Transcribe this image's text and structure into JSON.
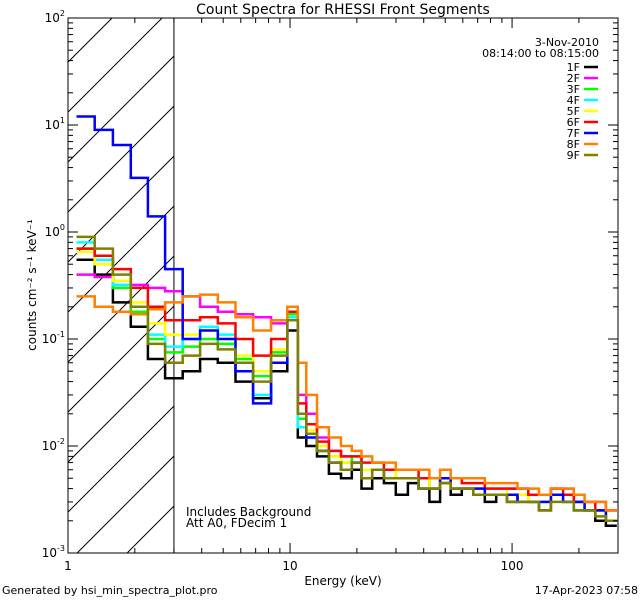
{
  "chart_data": {
    "type": "line",
    "title": "Count Spectra for RHESSI Front Segments",
    "xlabel": "Energy (keV)",
    "ylabel": "counts cm⁻² s⁻¹ keV⁻¹",
    "xscale": "log",
    "yscale": "log",
    "xlim": [
      1,
      300
    ],
    "ylim": [
      0.001,
      100
    ],
    "x_ticks": [
      {
        "value": 1,
        "label": "1"
      },
      {
        "value": 10,
        "label": "10"
      },
      {
        "value": 100,
        "label": "100"
      }
    ],
    "y_ticks": [
      {
        "value": 0.001,
        "base": "10",
        "exp": "-3"
      },
      {
        "value": 0.01,
        "base": "10",
        "exp": "-2"
      },
      {
        "value": 0.1,
        "base": "10",
        "exp": "-1"
      },
      {
        "value": 1,
        "base": "10",
        "exp": "0"
      },
      {
        "value": 10,
        "base": "10",
        "exp": "1"
      },
      {
        "value": 100,
        "base": "10",
        "exp": "2"
      }
    ],
    "date": "3-Nov-2010",
    "time_range": "08:14:00 to 08:15:00",
    "hatched_region": {
      "x_from": 1,
      "x_to": 3
    },
    "annotations": [
      "Includes Background",
      "Att A0, FDecim 1"
    ],
    "series": [
      {
        "name": "1F",
        "color": "#000000",
        "x": [
          1.2,
          1.45,
          1.75,
          2.1,
          2.5,
          3.0,
          3.6,
          4.3,
          5.2,
          6.2,
          7.5,
          9.0,
          10.5,
          11.2,
          12.5,
          14,
          16,
          18,
          20,
          22,
          25,
          28,
          32,
          36,
          40,
          45,
          50,
          56,
          63,
          71,
          80,
          90,
          100,
          112,
          125,
          140,
          160,
          180,
          200,
          225,
          250,
          280
        ],
        "values": [
          0.55,
          0.4,
          0.22,
          0.13,
          0.065,
          0.043,
          0.05,
          0.065,
          0.06,
          0.04,
          0.028,
          0.05,
          0.12,
          0.012,
          0.01,
          0.008,
          0.0055,
          0.005,
          0.006,
          0.004,
          0.005,
          0.0045,
          0.0035,
          0.0045,
          0.004,
          0.003,
          0.0045,
          0.0035,
          0.004,
          0.0035,
          0.003,
          0.0035,
          0.003,
          0.0035,
          0.003,
          0.0025,
          0.0035,
          0.0035,
          0.0025,
          0.0025,
          0.002,
          0.0018
        ]
      },
      {
        "name": "2F",
        "color": "#ff00ff",
        "x": [
          1.2,
          1.45,
          1.75,
          2.1,
          2.5,
          3.0,
          3.6,
          4.3,
          5.2,
          6.2,
          7.5,
          9.0,
          10.5,
          11.2,
          12.5,
          14,
          16,
          18,
          20,
          22,
          25,
          28,
          32,
          36,
          40,
          45,
          50,
          56,
          63,
          71,
          80,
          90,
          100,
          112,
          125,
          140,
          160,
          180,
          200,
          225,
          250,
          280
        ],
        "values": [
          0.4,
          0.38,
          0.35,
          0.32,
          0.3,
          0.28,
          0.25,
          0.2,
          0.18,
          0.17,
          0.16,
          0.14,
          0.15,
          0.03,
          0.02,
          0.012,
          0.009,
          0.008,
          0.007,
          0.006,
          0.006,
          0.006,
          0.005,
          0.005,
          0.005,
          0.004,
          0.005,
          0.004,
          0.004,
          0.004,
          0.004,
          0.004,
          0.004,
          0.004,
          0.0035,
          0.0035,
          0.004,
          0.004,
          0.003,
          0.003,
          0.003,
          0.0025
        ]
      },
      {
        "name": "3F",
        "color": "#00ff00",
        "x": [
          1.2,
          1.45,
          1.75,
          2.1,
          2.5,
          3.0,
          3.6,
          4.3,
          5.2,
          6.2,
          7.5,
          9.0,
          10.5,
          11.2,
          12.5,
          14,
          16,
          18,
          20,
          22,
          25,
          28,
          32,
          36,
          40,
          45,
          50,
          56,
          63,
          71,
          80,
          90,
          100,
          112,
          125,
          140,
          160,
          180,
          200,
          225,
          250,
          280
        ],
        "values": [
          0.7,
          0.5,
          0.3,
          0.18,
          0.1,
          0.075,
          0.085,
          0.1,
          0.09,
          0.065,
          0.045,
          0.075,
          0.17,
          0.018,
          0.013,
          0.009,
          0.008,
          0.007,
          0.008,
          0.006,
          0.006,
          0.006,
          0.005,
          0.005,
          0.005,
          0.004,
          0.0045,
          0.004,
          0.004,
          0.004,
          0.0035,
          0.0035,
          0.0035,
          0.0035,
          0.003,
          0.003,
          0.0035,
          0.003,
          0.003,
          0.0025,
          0.0025,
          0.002
        ]
      },
      {
        "name": "4F",
        "color": "#00ffff",
        "x": [
          1.2,
          1.45,
          1.75,
          2.1,
          2.5,
          3.0,
          3.6,
          4.3,
          5.2,
          6.2,
          7.5,
          9.0,
          10.5,
          11.2,
          12.5,
          14,
          16,
          18,
          20,
          22,
          25,
          28,
          32,
          36,
          40,
          45,
          50,
          56,
          63,
          71,
          80,
          90,
          100,
          112,
          125,
          140,
          160,
          180,
          200,
          225,
          250,
          280
        ],
        "values": [
          0.8,
          0.55,
          0.32,
          0.2,
          0.11,
          0.085,
          0.1,
          0.13,
          0.11,
          0.06,
          0.03,
          0.06,
          0.16,
          0.015,
          0.012,
          0.009,
          0.007,
          0.006,
          0.007,
          0.005,
          0.006,
          0.005,
          0.005,
          0.005,
          0.004,
          0.004,
          0.005,
          0.004,
          0.004,
          0.004,
          0.0035,
          0.0035,
          0.0035,
          0.0035,
          0.003,
          0.003,
          0.0035,
          0.003,
          0.0025,
          0.0025,
          0.0025,
          0.002
        ]
      },
      {
        "name": "5F",
        "color": "#ffff00",
        "x": [
          1.2,
          1.45,
          1.75,
          2.1,
          2.5,
          3.0,
          3.6,
          4.3,
          5.2,
          6.2,
          7.5,
          9.0,
          10.5,
          11.2,
          12.5,
          14,
          16,
          18,
          20,
          22,
          25,
          28,
          32,
          36,
          40,
          45,
          50,
          56,
          63,
          71,
          80,
          90,
          100,
          112,
          125,
          140,
          160,
          180,
          200,
          225,
          250,
          280
        ],
        "values": [
          0.65,
          0.5,
          0.35,
          0.22,
          0.14,
          0.11,
          0.11,
          0.12,
          0.1,
          0.07,
          0.05,
          0.08,
          0.18,
          0.02,
          0.014,
          0.01,
          0.008,
          0.007,
          0.007,
          0.006,
          0.006,
          0.006,
          0.005,
          0.005,
          0.005,
          0.004,
          0.005,
          0.004,
          0.004,
          0.004,
          0.004,
          0.004,
          0.0035,
          0.0035,
          0.003,
          0.003,
          0.0035,
          0.003,
          0.003,
          0.0025,
          0.0025,
          0.002
        ]
      },
      {
        "name": "6F",
        "color": "#ff0000",
        "x": [
          1.2,
          1.45,
          1.75,
          2.1,
          2.5,
          3.0,
          3.6,
          4.3,
          5.2,
          6.2,
          7.5,
          9.0,
          10.5,
          11.2,
          12.5,
          14,
          16,
          18,
          20,
          22,
          25,
          28,
          32,
          36,
          40,
          45,
          50,
          56,
          63,
          71,
          80,
          90,
          100,
          112,
          125,
          140,
          160,
          180,
          200,
          225,
          250,
          280
        ],
        "values": [
          0.7,
          0.6,
          0.45,
          0.3,
          0.2,
          0.15,
          0.15,
          0.16,
          0.14,
          0.1,
          0.07,
          0.1,
          0.18,
          0.025,
          0.016,
          0.011,
          0.009,
          0.008,
          0.008,
          0.007,
          0.007,
          0.006,
          0.006,
          0.006,
          0.005,
          0.005,
          0.005,
          0.005,
          0.0045,
          0.0045,
          0.004,
          0.004,
          0.004,
          0.004,
          0.0035,
          0.0035,
          0.004,
          0.0035,
          0.003,
          0.003,
          0.0025,
          0.0025
        ]
      },
      {
        "name": "7F",
        "color": "#0000ff",
        "x": [
          1.2,
          1.45,
          1.75,
          2.1,
          2.5,
          3.0,
          3.6,
          4.3,
          5.2,
          6.2,
          7.5,
          9.0,
          10.5,
          11.2,
          12.5,
          14,
          16,
          18,
          20,
          22,
          25,
          28,
          32,
          36,
          40,
          45,
          50,
          56,
          63,
          71,
          80,
          90,
          100,
          112,
          125,
          140,
          160,
          180,
          200,
          225,
          250,
          280
        ],
        "values": [
          12,
          9,
          6.5,
          3.2,
          1.4,
          0.45,
          0.1,
          0.12,
          0.1,
          0.05,
          0.025,
          0.06,
          0.15,
          0.02,
          0.012,
          0.009,
          0.007,
          0.006,
          0.007,
          0.005,
          0.006,
          0.005,
          0.005,
          0.005,
          0.004,
          0.004,
          0.005,
          0.004,
          0.004,
          0.004,
          0.0035,
          0.0035,
          0.0035,
          0.003,
          0.003,
          0.003,
          0.0035,
          0.003,
          0.003,
          0.0025,
          0.0025,
          0.002
        ]
      },
      {
        "name": "8F",
        "color": "#ff8000",
        "x": [
          1.2,
          1.45,
          1.75,
          2.1,
          2.5,
          3.0,
          3.6,
          4.3,
          5.2,
          6.2,
          7.5,
          9.0,
          10.5,
          11.2,
          12.5,
          14,
          16,
          18,
          20,
          22,
          25,
          28,
          32,
          36,
          40,
          45,
          50,
          56,
          63,
          71,
          80,
          90,
          100,
          112,
          125,
          140,
          160,
          180,
          200,
          225,
          250,
          280
        ],
        "values": [
          0.25,
          0.2,
          0.18,
          0.17,
          0.19,
          0.22,
          0.25,
          0.26,
          0.22,
          0.16,
          0.12,
          0.15,
          0.2,
          0.06,
          0.03,
          0.015,
          0.012,
          0.01,
          0.009,
          0.008,
          0.007,
          0.007,
          0.006,
          0.006,
          0.006,
          0.005,
          0.006,
          0.005,
          0.005,
          0.005,
          0.0045,
          0.0045,
          0.0045,
          0.004,
          0.004,
          0.0035,
          0.004,
          0.004,
          0.0035,
          0.003,
          0.003,
          0.0025
        ]
      },
      {
        "name": "9F",
        "color": "#808000",
        "x": [
          1.2,
          1.45,
          1.75,
          2.1,
          2.5,
          3.0,
          3.6,
          4.3,
          5.2,
          6.2,
          7.5,
          9.0,
          10.5,
          11.2,
          12.5,
          14,
          16,
          18,
          20,
          22,
          25,
          28,
          32,
          36,
          40,
          45,
          50,
          56,
          63,
          71,
          80,
          90,
          100,
          112,
          125,
          140,
          160,
          180,
          200,
          225,
          250,
          280
        ],
        "values": [
          0.9,
          0.7,
          0.4,
          0.2,
          0.09,
          0.06,
          0.07,
          0.09,
          0.08,
          0.06,
          0.04,
          0.07,
          0.15,
          0.02,
          0.013,
          0.009,
          0.007,
          0.006,
          0.007,
          0.005,
          0.006,
          0.005,
          0.005,
          0.005,
          0.004,
          0.004,
          0.0045,
          0.004,
          0.004,
          0.0035,
          0.0035,
          0.0035,
          0.003,
          0.003,
          0.003,
          0.0025,
          0.003,
          0.003,
          0.0025,
          0.0025,
          0.0022,
          0.002
        ]
      }
    ]
  },
  "footer": {
    "left": "Generated by hsi_min_spectra_plot.pro",
    "right": "17-Apr-2023 07:58"
  }
}
